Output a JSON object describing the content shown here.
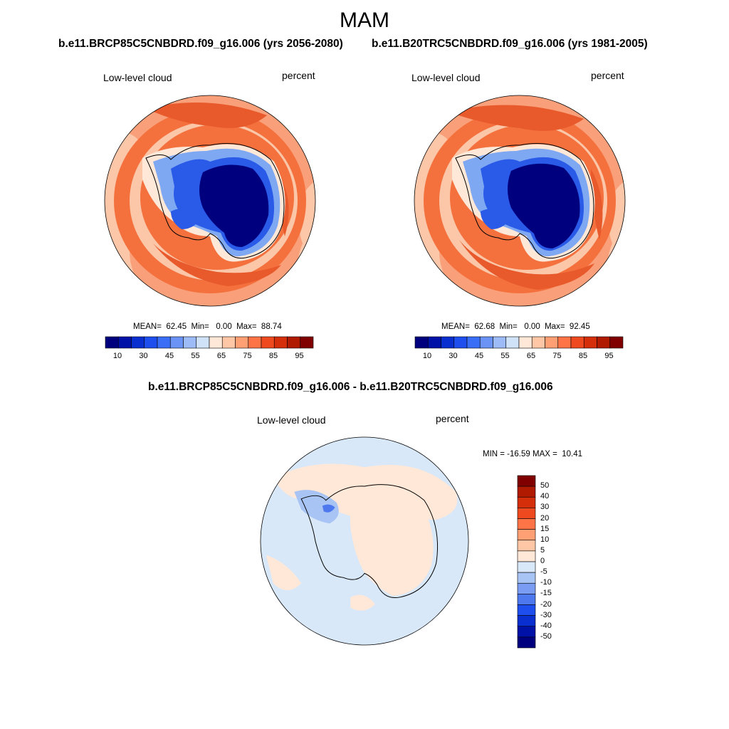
{
  "season": "MAM",
  "panels": [
    {
      "case_title": "b.e11.BRCP85C5CNBDRD.f09_g16.006 (yrs 2056-2080)",
      "variable": "Low-level cloud",
      "units": "percent",
      "stats": "MEAN=  62.45  Min=   0.00  Max=  88.74"
    },
    {
      "case_title": "b.e11.B20TRC5CNBDRD.f09_g16.006 (yrs 1981-2005)",
      "variable": "Low-level cloud",
      "units": "percent",
      "stats": "MEAN=  62.68  Min=   0.00  Max=  92.45"
    }
  ],
  "diff": {
    "title": "b.e11.BRCP85C5CNBDRD.f09_g16.006 - b.e11.B20TRC5CNBDRD.f09_g16.006",
    "variable": "Low-level cloud",
    "units": "percent",
    "stats": "MIN = -16.59 MAX =  10.41"
  },
  "colorbar_main": {
    "levels": [
      5,
      10,
      20,
      30,
      40,
      45,
      50,
      55,
      60,
      65,
      70,
      75,
      80,
      85,
      90,
      95
    ],
    "tick_labels": [
      "10",
      "30",
      "45",
      "55",
      "65",
      "75",
      "85",
      "95"
    ],
    "colors": [
      "#00007f",
      "#0011a8",
      "#0a2fd0",
      "#1e4fee",
      "#3a6ef6",
      "#6b93f6",
      "#9dbbf6",
      "#cfe2f8",
      "#ffe8d8",
      "#ffc7a6",
      "#ff9f74",
      "#ff7446",
      "#ef4a1f",
      "#d42e0a",
      "#b01a00",
      "#800000"
    ]
  },
  "colorbar_diff": {
    "tick_labels": [
      "50",
      "40",
      "30",
      "20",
      "15",
      "10",
      "5",
      "0",
      "-5",
      "-10",
      "-15",
      "-20",
      "-30",
      "-40",
      "-50"
    ],
    "colors": [
      "#800000",
      "#b01a00",
      "#d42e0a",
      "#ef4a1f",
      "#ff7446",
      "#ff9f74",
      "#ffc7a6",
      "#ffe8d8",
      "#d8e8f8",
      "#a8c4f4",
      "#7a9cf2",
      "#4e78ee",
      "#1e4fee",
      "#0a2fd0",
      "#0011a8",
      "#00007f"
    ]
  },
  "map_colors": {
    "ocean_high": "#e85a2c",
    "ocean_mid": "#f4713e",
    "ocean_outer": "#f9a07a",
    "ocean_light": "#fcc6a8",
    "coast_pale": "#ffe8d8",
    "ice_edge": "#7fa8f3",
    "ice_mid": "#2a5ae8",
    "ice_core": "#00007f",
    "diff_bg": "#d8e8f8",
    "diff_pos": "#ffe8d8",
    "diff_neg": "#a8c4f4",
    "diff_neg2": "#4e78ee"
  }
}
